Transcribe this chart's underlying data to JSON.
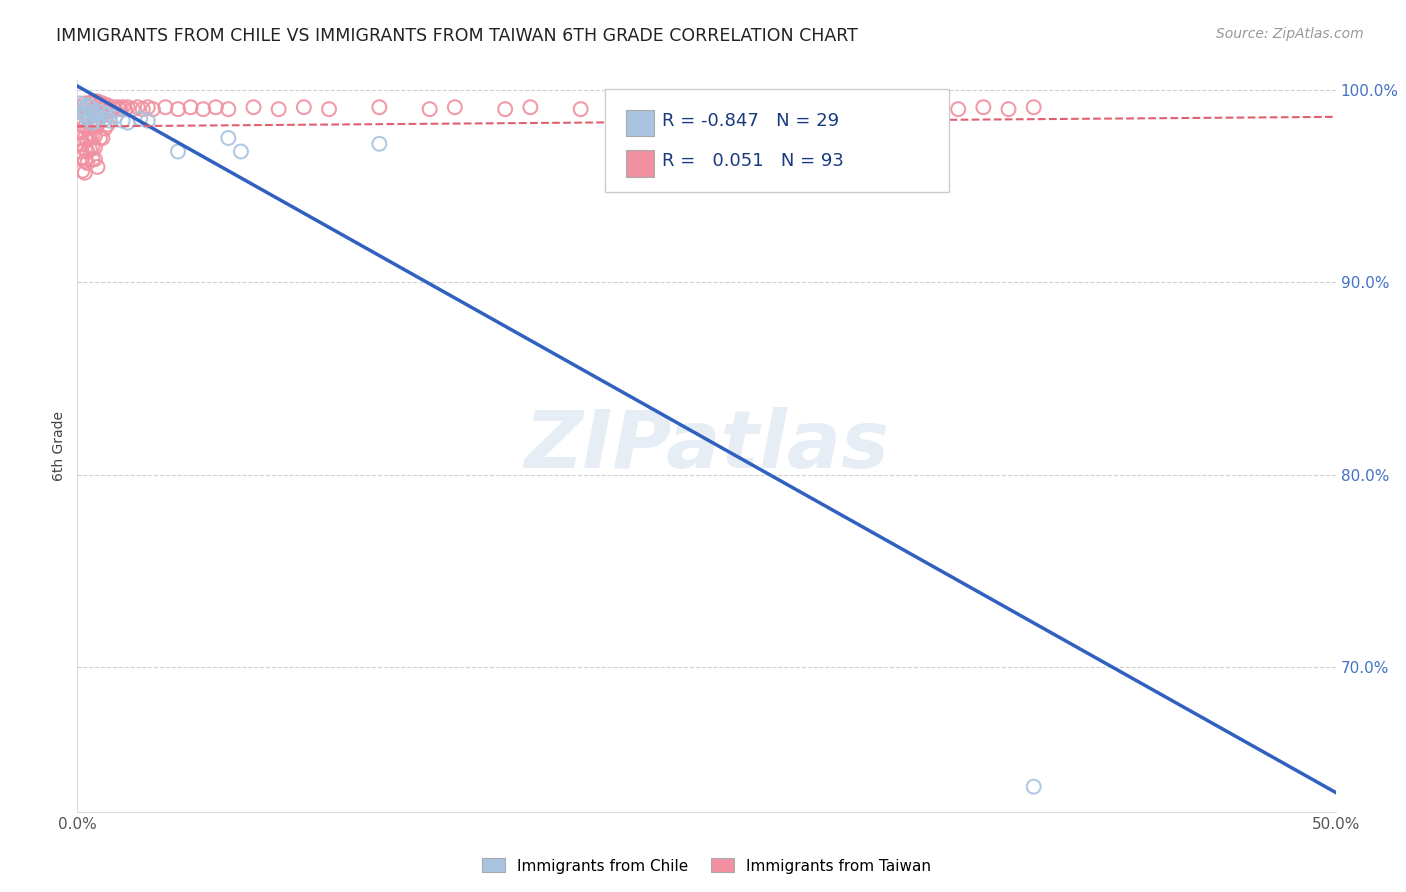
{
  "title": "IMMIGRANTS FROM CHILE VS IMMIGRANTS FROM TAIWAN 6TH GRADE CORRELATION CHART",
  "source": "Source: ZipAtlas.com",
  "ylabel": "6th Grade",
  "xlim": [
    0.0,
    0.5
  ],
  "ylim": [
    0.625,
    1.005
  ],
  "background_color": "#ffffff",
  "grid_color": "#d0d0d0",
  "watermark": "ZIPatlas",
  "chile_color": "#a8c4e0",
  "taiwan_color": "#f090a0",
  "chile_line_color": "#3060c0",
  "taiwan_line_color": "#e06070",
  "legend_chile_label": "Immigrants from Chile",
  "legend_taiwan_label": "Immigrants from Taiwan",
  "R_chile": -0.847,
  "N_chile": 29,
  "R_taiwan": 0.051,
  "N_taiwan": 93,
  "chile_scatter_x": [
    0.001,
    0.002,
    0.002,
    0.003,
    0.003,
    0.004,
    0.004,
    0.005,
    0.005,
    0.006,
    0.006,
    0.007,
    0.008,
    0.008,
    0.009,
    0.01,
    0.011,
    0.012,
    0.013,
    0.015,
    0.018,
    0.02,
    0.025,
    0.028,
    0.04,
    0.06,
    0.065,
    0.12,
    0.38
  ],
  "chile_scatter_y": [
    0.993,
    0.991,
    0.988,
    0.99,
    0.987,
    0.992,
    0.985,
    0.991,
    0.986,
    0.988,
    0.983,
    0.987,
    0.989,
    0.984,
    0.986,
    0.988,
    0.985,
    0.987,
    0.984,
    0.986,
    0.984,
    0.983,
    0.985,
    0.984,
    0.968,
    0.975,
    0.968,
    0.972,
    0.638
  ],
  "taiwan_scatter_x": [
    0.001,
    0.001,
    0.001,
    0.002,
    0.002,
    0.002,
    0.002,
    0.002,
    0.002,
    0.003,
    0.003,
    0.003,
    0.003,
    0.003,
    0.003,
    0.003,
    0.004,
    0.004,
    0.004,
    0.004,
    0.004,
    0.004,
    0.005,
    0.005,
    0.005,
    0.005,
    0.005,
    0.006,
    0.006,
    0.006,
    0.006,
    0.006,
    0.006,
    0.007,
    0.007,
    0.007,
    0.007,
    0.007,
    0.007,
    0.008,
    0.008,
    0.008,
    0.008,
    0.009,
    0.009,
    0.009,
    0.01,
    0.01,
    0.01,
    0.011,
    0.011,
    0.012,
    0.012,
    0.013,
    0.014,
    0.015,
    0.016,
    0.017,
    0.018,
    0.019,
    0.02,
    0.022,
    0.024,
    0.026,
    0.028,
    0.03,
    0.035,
    0.04,
    0.045,
    0.05,
    0.055,
    0.06,
    0.07,
    0.08,
    0.09,
    0.1,
    0.12,
    0.14,
    0.15,
    0.17,
    0.18,
    0.2,
    0.22,
    0.24,
    0.25,
    0.27,
    0.29,
    0.31,
    0.33,
    0.35,
    0.36,
    0.37,
    0.38
  ],
  "taiwan_scatter_y": [
    0.982,
    0.975,
    0.968,
    0.991,
    0.985,
    0.978,
    0.972,
    0.965,
    0.958,
    0.993,
    0.987,
    0.981,
    0.975,
    0.969,
    0.963,
    0.957,
    0.992,
    0.986,
    0.98,
    0.974,
    0.968,
    0.962,
    0.993,
    0.987,
    0.981,
    0.975,
    0.969,
    0.994,
    0.988,
    0.982,
    0.976,
    0.97,
    0.964,
    0.994,
    0.988,
    0.982,
    0.976,
    0.97,
    0.964,
    0.994,
    0.988,
    0.982,
    0.96,
    0.993,
    0.987,
    0.975,
    0.993,
    0.987,
    0.975,
    0.992,
    0.98,
    0.992,
    0.982,
    0.99,
    0.991,
    0.99,
    0.991,
    0.99,
    0.991,
    0.99,
    0.991,
    0.99,
    0.991,
    0.99,
    0.991,
    0.99,
    0.991,
    0.99,
    0.991,
    0.99,
    0.991,
    0.99,
    0.991,
    0.99,
    0.991,
    0.99,
    0.991,
    0.99,
    0.991,
    0.99,
    0.991,
    0.99,
    0.991,
    0.99,
    0.991,
    0.99,
    0.991,
    0.99,
    0.991,
    0.99,
    0.991,
    0.99,
    0.991
  ],
  "chile_line_x0": 0.0,
  "chile_line_x1": 0.5,
  "chile_line_y0": 1.002,
  "chile_line_y1": 0.635,
  "taiwan_line_x0": 0.0,
  "taiwan_line_x1": 0.5,
  "taiwan_line_y0": 0.981,
  "taiwan_line_y1": 0.986,
  "ytick_positions": [
    0.7,
    0.8,
    0.9,
    1.0
  ],
  "ytick_labels_map": {
    "0.70": "70.0%",
    "0.80": "80.0%",
    "0.90": "90.0%",
    "1.00": "100.0%"
  }
}
